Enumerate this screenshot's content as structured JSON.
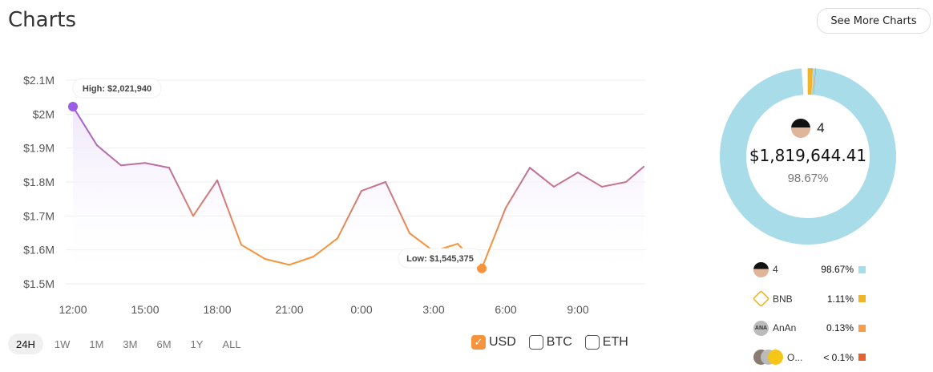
{
  "header": {
    "title": "Charts",
    "more_button": "See More Charts"
  },
  "chart_data": {
    "type": "area",
    "ylim": [
      1500000,
      2100000
    ],
    "y_ticks": [
      "$2.1M",
      "$2M",
      "$1.9M",
      "$1.8M",
      "$1.7M",
      "$1.6M",
      "$1.5M"
    ],
    "y_tick_values": [
      2100000,
      2000000,
      1900000,
      1800000,
      1700000,
      1600000,
      1500000
    ],
    "x_ticks": [
      "12:00",
      "15:00",
      "18:00",
      "21:00",
      "0:00",
      "3:00",
      "6:00",
      "9:00"
    ],
    "grid": true,
    "x": [
      "12:00",
      "13:00",
      "14:00",
      "15:00",
      "16:00",
      "17:00",
      "18:00",
      "19:00",
      "20:00",
      "21:00",
      "22:00",
      "23:00",
      "0:00",
      "1:00",
      "2:00",
      "3:00",
      "4:00",
      "5:00",
      "6:00",
      "7:00",
      "8:00",
      "9:00",
      "10:00",
      "11:00",
      "11:44"
    ],
    "values": [
      2021940,
      1908000,
      1849000,
      1856000,
      1842000,
      1700000,
      1805000,
      1615000,
      1573000,
      1556000,
      1580000,
      1634000,
      1774000,
      1800000,
      1649000,
      1596000,
      1618000,
      1545375,
      1724000,
      1842000,
      1786000,
      1828000,
      1786000,
      1800000,
      1845000
    ],
    "high_label": "High: $2,021,940",
    "low_label": "Low: $1,545,375",
    "colors": {
      "high": "#9b5de5",
      "low": "#f7933a",
      "mid": "#c8748a",
      "fill": "#efe7fb"
    }
  },
  "ranges": [
    {
      "label": "24H",
      "active": true
    },
    {
      "label": "1W"
    },
    {
      "label": "1M"
    },
    {
      "label": "3M"
    },
    {
      "label": "6M"
    },
    {
      "label": "1Y"
    },
    {
      "label": "ALL"
    }
  ],
  "currencies": [
    {
      "label": "USD",
      "checked": true
    },
    {
      "label": "BTC",
      "checked": false
    },
    {
      "label": "ETH",
      "checked": false
    }
  ],
  "donut": {
    "center": {
      "name": "4",
      "value": "$1,819,644.41",
      "percent": "98.67%"
    },
    "slices": [
      {
        "name": "4",
        "percent": "98.67%",
        "value": 98.67,
        "color": "#a8dce8",
        "icon": "avatar"
      },
      {
        "name": "BNB",
        "percent": "1.11%",
        "value": 1.11,
        "color": "#f0b429",
        "icon": "bnb-logo"
      },
      {
        "name": "AnAn",
        "percent": "0.13%",
        "value": 0.13,
        "color": "#f99d4a",
        "icon": "ANA"
      },
      {
        "name": "O...",
        "percent": "< 0.1%",
        "value": 0.09,
        "color": "#e8602c",
        "icon": "others"
      }
    ]
  }
}
